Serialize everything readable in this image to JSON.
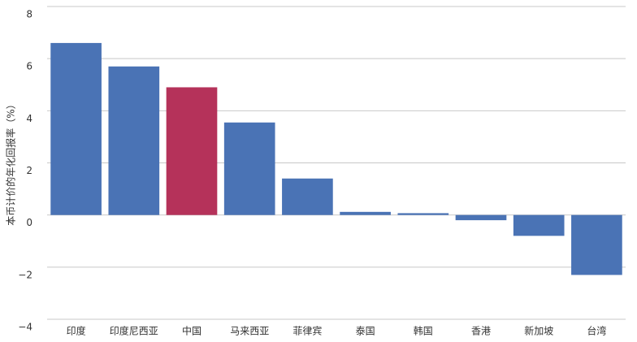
{
  "chart_data": {
    "type": "bar",
    "y_label": "本币计价的年化回报率（%）",
    "categories": [
      "印度",
      "印度尼西亚",
      "中国",
      "马来西亚",
      "菲律宾",
      "泰国",
      "韩国",
      "香港",
      "新加坡",
      "台湾"
    ],
    "values": [
      6.6,
      5.7,
      4.9,
      3.55,
      1.4,
      0.12,
      0.07,
      -0.2,
      -0.8,
      -2.3
    ],
    "colors": [
      "#4a73b5",
      "#4a73b5",
      "#b5325a",
      "#4a73b5",
      "#4a73b5",
      "#4a73b5",
      "#4a73b5",
      "#4a73b5",
      "#4a73b5",
      "#4a73b5"
    ],
    "ylim": [
      -4,
      8
    ],
    "yticks": [
      {
        "value": -4,
        "label": "−4"
      },
      {
        "value": -2,
        "label": "−2"
      },
      0,
      2,
      4,
      6,
      8
    ],
    "grid": true
  }
}
